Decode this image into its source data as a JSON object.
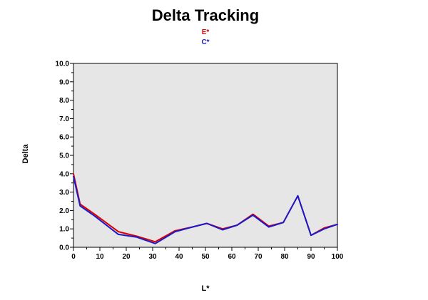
{
  "chart_data": {
    "type": "line",
    "title": "Delta Tracking",
    "xlabel": "L*",
    "ylabel": "Delta",
    "xlim": [
      0,
      100
    ],
    "ylim": [
      0,
      10
    ],
    "x_ticks": [
      "0",
      "10",
      "20",
      "30",
      "40",
      "50",
      "60",
      "70",
      "80",
      "90",
      "100"
    ],
    "y_ticks": [
      "0.0",
      "1.0",
      "2.0",
      "3.0",
      "4.0",
      "5.0",
      "6.0",
      "7.0",
      "8.0",
      "9.0",
      "10.0"
    ],
    "grid": false,
    "legend_position": "top-center",
    "background": "#e6e6e6",
    "series": [
      {
        "name": "E*",
        "color": "#dd0000",
        "points": [
          [
            0,
            4.0
          ],
          [
            2.5,
            2.35
          ],
          [
            8,
            1.8
          ],
          [
            17,
            0.85
          ],
          [
            24,
            0.6
          ],
          [
            31,
            0.3
          ],
          [
            38.5,
            0.9
          ],
          [
            45,
            1.1
          ],
          [
            50.5,
            1.3
          ],
          [
            56.5,
            1.0
          ],
          [
            62,
            1.2
          ],
          [
            68,
            1.8
          ],
          [
            74,
            1.15
          ],
          [
            79.5,
            1.35
          ],
          [
            85,
            2.8
          ],
          [
            90,
            0.65
          ],
          [
            95,
            1.05
          ],
          [
            100,
            1.25
          ]
        ]
      },
      {
        "name": "C*",
        "color": "#1a1acc",
        "points": [
          [
            0,
            3.85
          ],
          [
            2.5,
            2.25
          ],
          [
            8,
            1.7
          ],
          [
            17,
            0.7
          ],
          [
            24,
            0.55
          ],
          [
            31,
            0.2
          ],
          [
            38.5,
            0.85
          ],
          [
            45,
            1.1
          ],
          [
            50.5,
            1.3
          ],
          [
            56.5,
            0.95
          ],
          [
            62,
            1.2
          ],
          [
            68,
            1.75
          ],
          [
            74,
            1.1
          ],
          [
            79.5,
            1.35
          ],
          [
            85,
            2.8
          ],
          [
            90,
            0.65
          ],
          [
            95,
            1.0
          ],
          [
            100,
            1.25
          ]
        ]
      }
    ]
  }
}
